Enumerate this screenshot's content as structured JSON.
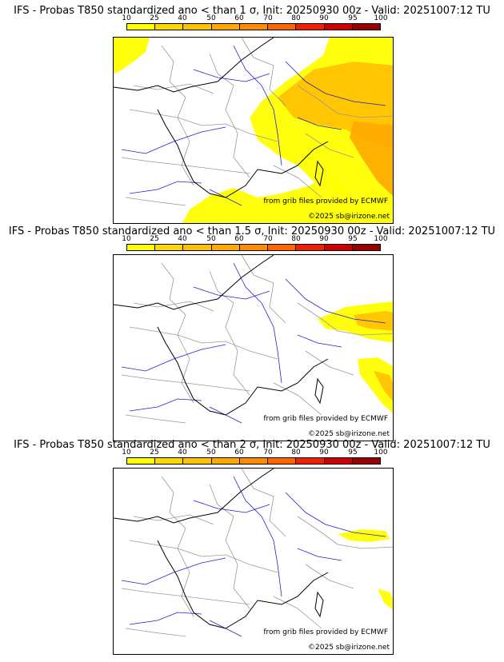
{
  "colorbar": {
    "ticks": [
      "10",
      "25",
      "40",
      "50",
      "60",
      "70",
      "80",
      "90",
      "95",
      "100"
    ],
    "colors": [
      "#ffff00",
      "#ffd700",
      "#ffc000",
      "#ffa800",
      "#ff8c00",
      "#ff6600",
      "#ee2200",
      "#cc0000",
      "#990000",
      "#550000"
    ]
  },
  "panels": [
    {
      "title": "IFS - Probas T850  standardized ano < than 1 σ, Init: 20250930 00z - Valid: 20251007:12 TU",
      "credit_source": "from grib files provided by ECMWF",
      "credit_copyright": "©2025 sb@irizone.net"
    },
    {
      "title": "IFS - Probas T850  standardized ano < than 1.5 σ, Init: 20250930 00z - Valid: 20251007:12 TU",
      "credit_source": "from grib files provided by ECMWF",
      "credit_copyright": "©2025 sb@irizone.net"
    },
    {
      "title": "IFS - Probas T850  standardized ano < than 2 σ, Init: 20250930 00z - Valid: 20251007:12 TU",
      "credit_source": "from grib files provided by ECMWF",
      "credit_copyright": "©2025 sb@irizone.net"
    }
  ],
  "map_layers": {
    "coastline_color": "#000000",
    "river_color": "#2222cc",
    "border_color": "#999999"
  }
}
